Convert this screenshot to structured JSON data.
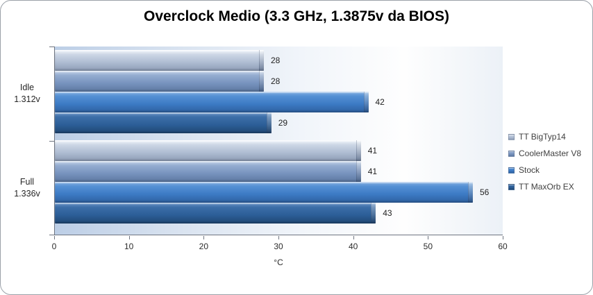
{
  "chart_data": {
    "type": "bar",
    "orientation": "horizontal",
    "title": "Overclock Medio (3.3 GHz, 1.3875v da BIOS)",
    "xlabel": "°C",
    "xlim": [
      0,
      60
    ],
    "x_ticks": [
      0,
      10,
      20,
      30,
      40,
      50,
      60
    ],
    "grid": false,
    "legend_position": "right",
    "categories": [
      {
        "label_lines": [
          "Idle",
          "1.312v"
        ]
      },
      {
        "label_lines": [
          "Full",
          "1.336v"
        ]
      }
    ],
    "series": [
      {
        "name": "TT BigTyp14",
        "values": [
          28,
          41
        ],
        "colors": [
          "#f4f8fc",
          "#ccd6e5",
          "#aebcd2",
          "#8d9cb5"
        ]
      },
      {
        "name": "CoolerMaster V8",
        "values": [
          28,
          41
        ],
        "colors": [
          "#c6d5ea",
          "#94acd0",
          "#7793be",
          "#5d78a1"
        ]
      },
      {
        "name": "Stock",
        "values": [
          42,
          56
        ],
        "colors": [
          "#85b1e2",
          "#5490d4",
          "#3c7ac4",
          "#2e609f"
        ]
      },
      {
        "name": "TT MaxOrb EX",
        "values": [
          29,
          43
        ],
        "colors": [
          "#6b95c8",
          "#3c6ea8",
          "#2c5e97",
          "#1f4672"
        ]
      }
    ]
  },
  "frame": {
    "background": "#ffffff",
    "border_color": "#9aa0a8"
  }
}
